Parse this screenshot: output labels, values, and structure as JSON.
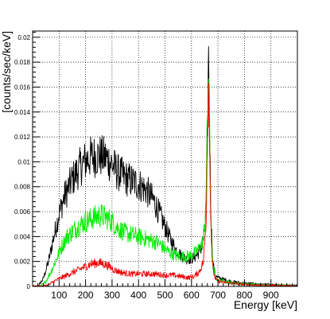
{
  "chart_data": {
    "type": "line",
    "title": "",
    "xlabel": "Energy [keV]",
    "ylabel": "[counts/sec/keV]",
    "xlim": [
      0,
      1000
    ],
    "ylim": [
      0,
      0.0205
    ],
    "x_ticks": [
      100,
      200,
      300,
      400,
      500,
      600,
      700,
      800,
      900
    ],
    "y_ticks": [
      0,
      0.002,
      0.004,
      0.006,
      0.008,
      0.01,
      0.012,
      0.014,
      0.016,
      0.018,
      0.02
    ],
    "x_tick_labels": [
      "100",
      "200",
      "300",
      "400",
      "500",
      "600",
      "700",
      "800",
      "900"
    ],
    "y_tick_labels": [
      "0",
      "0.002",
      "0.004",
      "0.006",
      "0.008",
      "0.01",
      "0.012",
      "0.014",
      "0.016",
      "0.018",
      "0.02"
    ],
    "grid": true,
    "legend": "none",
    "series": [
      {
        "color": "#000000",
        "points": [
          [
            0,
            0
          ],
          [
            20,
            0
          ],
          [
            40,
            0.0006
          ],
          [
            60,
            0.002
          ],
          [
            80,
            0.004
          ],
          [
            100,
            0.0058
          ],
          [
            120,
            0.0072
          ],
          [
            150,
            0.0086
          ],
          [
            180,
            0.0096
          ],
          [
            200,
            0.0101
          ],
          [
            220,
            0.0104
          ],
          [
            250,
            0.0105
          ],
          [
            280,
            0.0103
          ],
          [
            300,
            0.0098
          ],
          [
            320,
            0.0092
          ],
          [
            350,
            0.0087
          ],
          [
            380,
            0.0084
          ],
          [
            400,
            0.0082
          ],
          [
            430,
            0.0077
          ],
          [
            460,
            0.0068
          ],
          [
            480,
            0.0058
          ],
          [
            500,
            0.0048
          ],
          [
            520,
            0.0038
          ],
          [
            540,
            0.003
          ],
          [
            560,
            0.0025
          ],
          [
            580,
            0.0022
          ],
          [
            600,
            0.0022
          ],
          [
            620,
            0.0025
          ],
          [
            640,
            0.0032
          ],
          [
            650,
            0.0045
          ],
          [
            655,
            0.0065
          ],
          [
            660,
            0.011
          ],
          [
            663,
            0.0165
          ],
          [
            665,
            0.0185
          ],
          [
            667,
            0.016
          ],
          [
            670,
            0.01
          ],
          [
            675,
            0.005
          ],
          [
            680,
            0.002
          ],
          [
            690,
            0.0009
          ],
          [
            700,
            0.0007
          ],
          [
            730,
            0.0005
          ],
          [
            760,
            0.00035
          ],
          [
            800,
            0.00025
          ],
          [
            850,
            0.00018
          ],
          [
            900,
            0.00012
          ],
          [
            950,
            8e-05
          ],
          [
            1000,
            5e-05
          ]
        ]
      },
      {
        "color": "#00ee00",
        "points": [
          [
            0,
            0
          ],
          [
            30,
            0
          ],
          [
            50,
            0.0004
          ],
          [
            70,
            0.0012
          ],
          [
            90,
            0.0022
          ],
          [
            110,
            0.0032
          ],
          [
            130,
            0.004
          ],
          [
            160,
            0.0046
          ],
          [
            190,
            0.0051
          ],
          [
            210,
            0.0053
          ],
          [
            240,
            0.0056
          ],
          [
            260,
            0.0057
          ],
          [
            280,
            0.0055
          ],
          [
            300,
            0.0052
          ],
          [
            320,
            0.0047
          ],
          [
            350,
            0.0043
          ],
          [
            380,
            0.0041
          ],
          [
            400,
            0.004
          ],
          [
            430,
            0.0038
          ],
          [
            460,
            0.0036
          ],
          [
            480,
            0.0034
          ],
          [
            500,
            0.003
          ],
          [
            520,
            0.0027
          ],
          [
            540,
            0.0025
          ],
          [
            560,
            0.0024
          ],
          [
            580,
            0.0024
          ],
          [
            600,
            0.0025
          ],
          [
            620,
            0.0028
          ],
          [
            640,
            0.0034
          ],
          [
            650,
            0.0046
          ],
          [
            655,
            0.0075
          ],
          [
            660,
            0.013
          ],
          [
            663,
            0.016
          ],
          [
            665,
            0.017
          ],
          [
            667,
            0.015
          ],
          [
            670,
            0.0095
          ],
          [
            675,
            0.0045
          ],
          [
            680,
            0.0018
          ],
          [
            690,
            0.0007
          ],
          [
            700,
            0.0005
          ],
          [
            750,
            0.0003
          ],
          [
            800,
            0.0002
          ],
          [
            900,
            0.0001
          ],
          [
            1000,
            4e-05
          ]
        ]
      },
      {
        "color": "#ee0000",
        "points": [
          [
            0,
            0
          ],
          [
            30,
            0
          ],
          [
            60,
            0.0001
          ],
          [
            80,
            0.0004
          ],
          [
            100,
            0.0006
          ],
          [
            130,
            0.0009
          ],
          [
            160,
            0.0012
          ],
          [
            190,
            0.0015
          ],
          [
            220,
            0.0018
          ],
          [
            250,
            0.0019
          ],
          [
            270,
            0.0018
          ],
          [
            290,
            0.0016
          ],
          [
            310,
            0.0013
          ],
          [
            340,
            0.0011
          ],
          [
            370,
            0.001
          ],
          [
            400,
            0.001
          ],
          [
            430,
            0.001
          ],
          [
            460,
            0.001
          ],
          [
            500,
            0.0009
          ],
          [
            530,
            0.0009
          ],
          [
            560,
            0.0008
          ],
          [
            590,
            0.0007
          ],
          [
            610,
            0.0008
          ],
          [
            630,
            0.0012
          ],
          [
            645,
            0.002
          ],
          [
            655,
            0.005
          ],
          [
            660,
            0.012
          ],
          [
            663,
            0.016
          ],
          [
            665,
            0.0165
          ],
          [
            667,
            0.014
          ],
          [
            670,
            0.009
          ],
          [
            675,
            0.004
          ],
          [
            680,
            0.0015
          ],
          [
            690,
            0.0006
          ],
          [
            700,
            0.0004
          ],
          [
            750,
            0.00025
          ],
          [
            800,
            0.00015
          ],
          [
            900,
            8e-05
          ],
          [
            1000,
            3e-05
          ]
        ]
      }
    ]
  }
}
